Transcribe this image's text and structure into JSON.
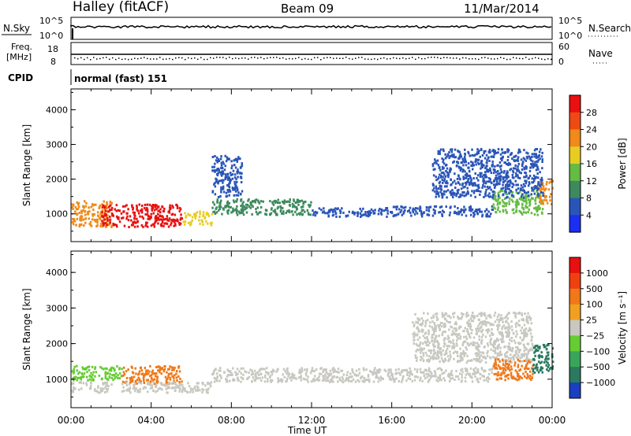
{
  "header": {
    "station": "Halley (fitACF)",
    "beam": "Beam 09",
    "date": "11/Mar/2014"
  },
  "strip": {
    "nsky_label": "N.Sky",
    "nsky_ticks": [
      "10^5",
      "10^0"
    ],
    "nsearch_label": "N.Search",
    "nsearch_ticks": [
      "10^5",
      "10^0"
    ],
    "freq_label_line1": "Freq.",
    "freq_label_line2": "[MHz]",
    "freq_ticks": [
      "18",
      "8"
    ],
    "nave_label": "Nave",
    "nave_ticks": [
      "60",
      "0"
    ],
    "cpid_label": "CPID",
    "cpid_value": "normal (fast) 151"
  },
  "chart_data": [
    {
      "type": "heatmap",
      "name": "power-panel",
      "ylabel": "Slant Range [km]",
      "xlabel": "",
      "x_ticks": [
        "00:00",
        "04:00",
        "08:00",
        "12:00",
        "16:00",
        "20:00",
        "00:00"
      ],
      "y_ticks": [
        1000,
        2000,
        3000,
        4000
      ],
      "xlim": [
        0,
        24
      ],
      "ylim": [
        200,
        4600
      ],
      "colorbar": {
        "label": "Power [dB]",
        "ticks": [
          "4",
          "8",
          "12",
          "16",
          "20",
          "24",
          "28"
        ],
        "colors": [
          "#1a2ff0",
          "#2a55b8",
          "#3d8a5e",
          "#66bb44",
          "#e8cc22",
          "#f08a1a",
          "#f04a14",
          "#e81010"
        ]
      },
      "regions": [
        {
          "t0": 0.0,
          "t1": 2.0,
          "r0": 650,
          "r1": 1400,
          "level": 5
        },
        {
          "t0": 1.5,
          "t1": 5.5,
          "r0": 650,
          "r1": 1300,
          "level": 7
        },
        {
          "t0": 5.5,
          "t1": 7.0,
          "r0": 700,
          "r1": 1100,
          "level": 4
        },
        {
          "t0": 7.0,
          "t1": 12.0,
          "r0": 1000,
          "r1": 1450,
          "level": 2
        },
        {
          "t0": 12.0,
          "t1": 16.0,
          "r0": 950,
          "r1": 1200,
          "level": 1
        },
        {
          "t0": 16.0,
          "t1": 21.0,
          "r0": 950,
          "r1": 1250,
          "level": 1
        },
        {
          "t0": 21.0,
          "t1": 23.5,
          "r0": 1000,
          "r1": 1700,
          "level": 3
        },
        {
          "t0": 23.2,
          "t1": 24.0,
          "r0": 1300,
          "r1": 2000,
          "level": 5
        },
        {
          "t0": 18.0,
          "t1": 23.5,
          "r0": 1500,
          "r1": 2900,
          "level": 1
        },
        {
          "t0": 7.0,
          "t1": 8.5,
          "r0": 1500,
          "r1": 2700,
          "level": 1
        }
      ]
    },
    {
      "type": "heatmap",
      "name": "velocity-panel",
      "ylabel": "Slant Range [km]",
      "xlabel": "Time UT",
      "x_ticks": [
        "00:00",
        "04:00",
        "08:00",
        "12:00",
        "16:00",
        "20:00",
        "00:00"
      ],
      "y_ticks": [
        1000,
        2000,
        3000,
        4000
      ],
      "xlim": [
        0,
        24
      ],
      "ylim": [
        200,
        4600
      ],
      "colorbar": {
        "label": "Velocity [m s⁻¹]",
        "ticks": [
          "1000",
          "500",
          "100",
          "25",
          "−25",
          "−100",
          "−500",
          "−1000"
        ],
        "colors": [
          "#1a3fc0",
          "#2a7a60",
          "#3aa55a",
          "#66cc33",
          "#c8c8c0",
          "#f0a020",
          "#f07818",
          "#f04010",
          "#e81010"
        ]
      },
      "regions": [
        {
          "t0": 0.0,
          "t1": 2.5,
          "r0": 1000,
          "r1": 1400,
          "level": 3
        },
        {
          "t0": 0.0,
          "t1": 2.0,
          "r0": 650,
          "r1": 950,
          "level": 4
        },
        {
          "t0": 2.5,
          "t1": 5.5,
          "r0": 900,
          "r1": 1400,
          "level": 6
        },
        {
          "t0": 2.5,
          "t1": 7.0,
          "r0": 650,
          "r1": 950,
          "level": 4
        },
        {
          "t0": 7.0,
          "t1": 21.0,
          "r0": 950,
          "r1": 1350,
          "level": 4
        },
        {
          "t0": 17.0,
          "t1": 23.0,
          "r0": 1500,
          "r1": 2900,
          "level": 4
        },
        {
          "t0": 21.0,
          "t1": 23.0,
          "r0": 1000,
          "r1": 1600,
          "level": 6
        },
        {
          "t0": 23.0,
          "t1": 24.0,
          "r0": 1200,
          "r1": 2000,
          "level": 1
        }
      ]
    }
  ]
}
